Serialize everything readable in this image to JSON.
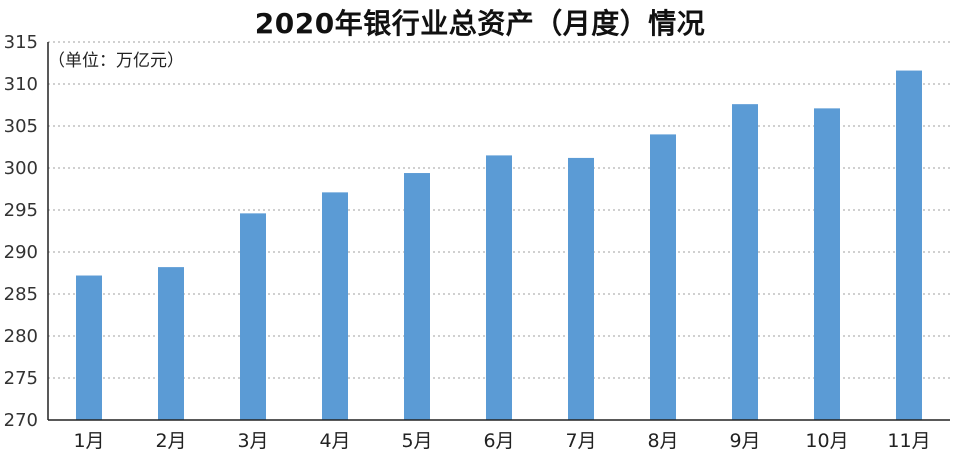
{
  "chart_data": {
    "type": "bar",
    "title": "2020年银行业总资产（月度）情况",
    "unit_note": "（单位：万亿元）",
    "categories": [
      "1月",
      "2月",
      "3月",
      "4月",
      "5月",
      "6月",
      "7月",
      "8月",
      "9月",
      "10月",
      "11月"
    ],
    "values": [
      287.2,
      288.2,
      294.6,
      297.1,
      299.4,
      301.5,
      301.2,
      304.0,
      307.6,
      307.1,
      311.6
    ],
    "ylim": [
      270,
      315
    ],
    "yticks": [
      270,
      275,
      280,
      285,
      290,
      295,
      300,
      305,
      310,
      315
    ],
    "grid": true,
    "bar_color": "#5b9bd5",
    "xlabel": "",
    "ylabel": ""
  }
}
